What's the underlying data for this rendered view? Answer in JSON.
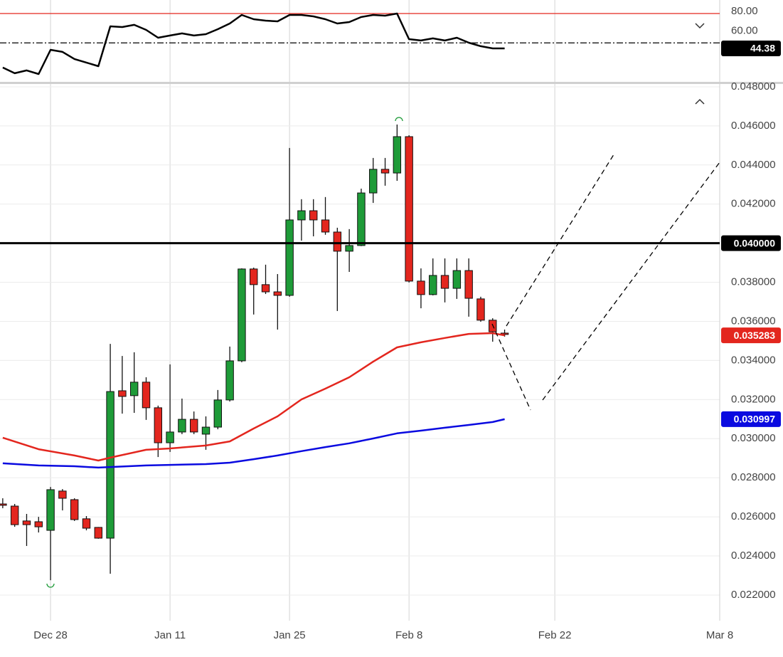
{
  "chart_data": [
    {
      "type": "line",
      "color": "#000000",
      "x": [
        -4,
        -3,
        -2,
        -1,
        0,
        1,
        2,
        3,
        4,
        5,
        6,
        7,
        8,
        9,
        10,
        11,
        12,
        13,
        14,
        15,
        16,
        17,
        18,
        19,
        20,
        21,
        22,
        23,
        24,
        25,
        26,
        27,
        28,
        29,
        30,
        31,
        32,
        33,
        34,
        35,
        36,
        37,
        38
      ],
      "values": [
        24.8,
        19.0,
        21.9,
        18.2,
        42.9,
        40.8,
        33.5,
        29.9,
        26.2,
        66.9,
        66.2,
        68.4,
        63.3,
        55.3,
        57.5,
        59.7,
        57.5,
        58.9,
        64.0,
        69.8,
        78.5,
        74.2,
        72.7,
        72.0,
        78.5,
        78.5,
        77.1,
        74.2,
        69.8,
        71.3,
        76.4,
        78.5,
        77.8,
        80.0,
        53.8,
        52.4,
        54.6,
        52.4,
        55.3,
        50.2,
        46.6,
        44.4,
        44.38
      ],
      "xlim": [
        -4.23,
        56
      ],
      "ylim": [
        10.2,
        93.8
      ],
      "yticks": [
        {
          "value": 60,
          "label": "60.00"
        },
        {
          "value": 80,
          "label": "80.00"
        }
      ],
      "hlines": [
        {
          "value": 80,
          "color": "#e3261e",
          "style": "solid"
        },
        {
          "value": 50,
          "color": "#000000",
          "style": "dashdot"
        }
      ]
    },
    {
      "type": "candlestick",
      "up_color": "#1e9b38",
      "down_color": "#e3261e",
      "x": [
        -4,
        -3,
        -2,
        -1,
        0,
        1,
        2,
        3,
        4,
        5,
        6,
        7,
        8,
        9,
        10,
        11,
        12,
        13,
        14,
        15,
        16,
        17,
        18,
        19,
        20,
        21,
        22,
        23,
        24,
        25,
        26,
        27,
        28,
        29,
        30,
        31,
        32,
        33,
        34,
        35,
        36,
        37,
        38
      ],
      "open": [
        0.02666,
        0.02655,
        0.02579,
        0.02575,
        0.02531,
        0.02732,
        0.02688,
        0.0259,
        0.02546,
        0.02491,
        0.03245,
        0.0322,
        0.03289,
        0.03158,
        0.02979,
        0.03034,
        0.03099,
        0.03023,
        0.03059,
        0.03198,
        0.03398,
        0.03868,
        0.03788,
        0.03751,
        0.03733,
        0.04119,
        0.04166,
        0.04119,
        0.04057,
        0.03959,
        0.03988,
        0.04257,
        0.04378,
        0.04359,
        0.04545,
        0.03806,
        0.03737,
        0.03835,
        0.03769,
        0.0386,
        0.03715,
        0.03606,
        0.0354
      ],
      "close": [
        0.02659,
        0.0256,
        0.0256,
        0.02549,
        0.02739,
        0.02695,
        0.02586,
        0.02542,
        0.02491,
        0.03241,
        0.03216,
        0.03289,
        0.03158,
        0.02979,
        0.03034,
        0.03099,
        0.03034,
        0.03059,
        0.03198,
        0.03398,
        0.03868,
        0.03788,
        0.03751,
        0.03733,
        0.04119,
        0.04166,
        0.04119,
        0.04057,
        0.03959,
        0.03988,
        0.04257,
        0.04378,
        0.04359,
        0.04545,
        0.03806,
        0.03737,
        0.03835,
        0.03769,
        0.0386,
        0.03718,
        0.03606,
        0.03547,
        0.03533
      ],
      "high": [
        0.02695,
        0.02666,
        0.02615,
        0.026,
        0.02753,
        0.02742,
        0.02695,
        0.02604,
        0.02548,
        0.03485,
        0.03423,
        0.03442,
        0.03314,
        0.03169,
        0.0338,
        0.03205,
        0.03139,
        0.03114,
        0.03249,
        0.03471,
        0.03871,
        0.03875,
        0.0389,
        0.03842,
        0.04487,
        0.04225,
        0.04225,
        0.04236,
        0.04079,
        0.04072,
        0.04279,
        0.04436,
        0.04436,
        0.04607,
        0.04552,
        0.03871,
        0.03922,
        0.03922,
        0.03922,
        0.03922,
        0.03726,
        0.03616,
        0.03558
      ],
      "low": [
        0.02644,
        0.02549,
        0.02451,
        0.0252,
        0.02276,
        0.02633,
        0.02579,
        0.02531,
        0.02488,
        0.02309,
        0.03128,
        0.03132,
        0.03096,
        0.02906,
        0.02932,
        0.03023,
        0.03023,
        0.02943,
        0.03048,
        0.0319,
        0.03391,
        0.03635,
        0.0374,
        0.03558,
        0.03726,
        0.04013,
        0.04035,
        0.04043,
        0.03653,
        0.03853,
        0.03985,
        0.04206,
        0.04294,
        0.04319,
        0.03799,
        0.03667,
        0.03733,
        0.03697,
        0.03715,
        0.03624,
        0.03598,
        0.03496,
        0.03522
      ],
      "series": [
        {
          "color": "#e3261e",
          "x": [
            -4,
            -1,
            2,
            4,
            5,
            8,
            10,
            13,
            15,
            17,
            19,
            21,
            23,
            25,
            27,
            29,
            31,
            33,
            35,
            37,
            38
          ],
          "values": [
            0.03005,
            0.02946,
            0.02914,
            0.02888,
            0.02903,
            0.02943,
            0.0295,
            0.02965,
            0.02986,
            0.03052,
            0.03114,
            0.03201,
            0.03256,
            0.03314,
            0.03394,
            0.03467,
            0.03493,
            0.03515,
            0.03536,
            0.0354,
            0.035283
          ]
        },
        {
          "color": "#0a0ae0",
          "x": [
            -4,
            -1,
            2,
            4,
            5,
            8,
            10,
            13,
            15,
            17,
            19,
            21,
            23,
            25,
            27,
            29,
            31,
            33,
            35,
            37,
            38
          ],
          "values": [
            0.02874,
            0.02863,
            0.02859,
            0.02852,
            0.02855,
            0.02863,
            0.02866,
            0.0287,
            0.02877,
            0.02895,
            0.02914,
            0.02936,
            0.02957,
            0.02976,
            0.03001,
            0.03027,
            0.03041,
            0.03056,
            0.0307,
            0.03085,
            0.030997
          ]
        }
      ],
      "hline": {
        "value": 0.04,
        "label": "0.040000",
        "color": "#000000"
      },
      "xlim": [
        -4.23,
        56
      ],
      "ylim": [
        0.02076,
        0.04818
      ],
      "xticks": [
        {
          "value": 0,
          "label": "Dec 28"
        },
        {
          "value": 10,
          "label": "Jan 11"
        },
        {
          "value": 20,
          "label": "Jan 25"
        },
        {
          "value": 30,
          "label": "Feb 8"
        },
        {
          "value": 42.2,
          "label": "Feb 22"
        },
        {
          "value": 56,
          "label": "Mar 8"
        }
      ],
      "yticks": [
        {
          "value": 0.022,
          "label": "0.022000"
        },
        {
          "value": 0.024,
          "label": "0.024000"
        },
        {
          "value": 0.026,
          "label": "0.026000"
        },
        {
          "value": 0.028,
          "label": "0.028000"
        },
        {
          "value": 0.03,
          "label": "0.030000"
        },
        {
          "value": 0.032,
          "label": "0.032000"
        },
        {
          "value": 0.034,
          "label": "0.034000"
        },
        {
          "value": 0.036,
          "label": "0.036000"
        },
        {
          "value": 0.038,
          "label": "0.038000"
        },
        {
          "value": 0.04,
          "label": "0.040000"
        },
        {
          "value": 0.042,
          "label": "0.042000"
        },
        {
          "value": 0.044,
          "label": "0.044000"
        },
        {
          "value": 0.046,
          "label": "0.046000"
        },
        {
          "value": 0.048,
          "label": "0.048000"
        }
      ]
    }
  ]
}
